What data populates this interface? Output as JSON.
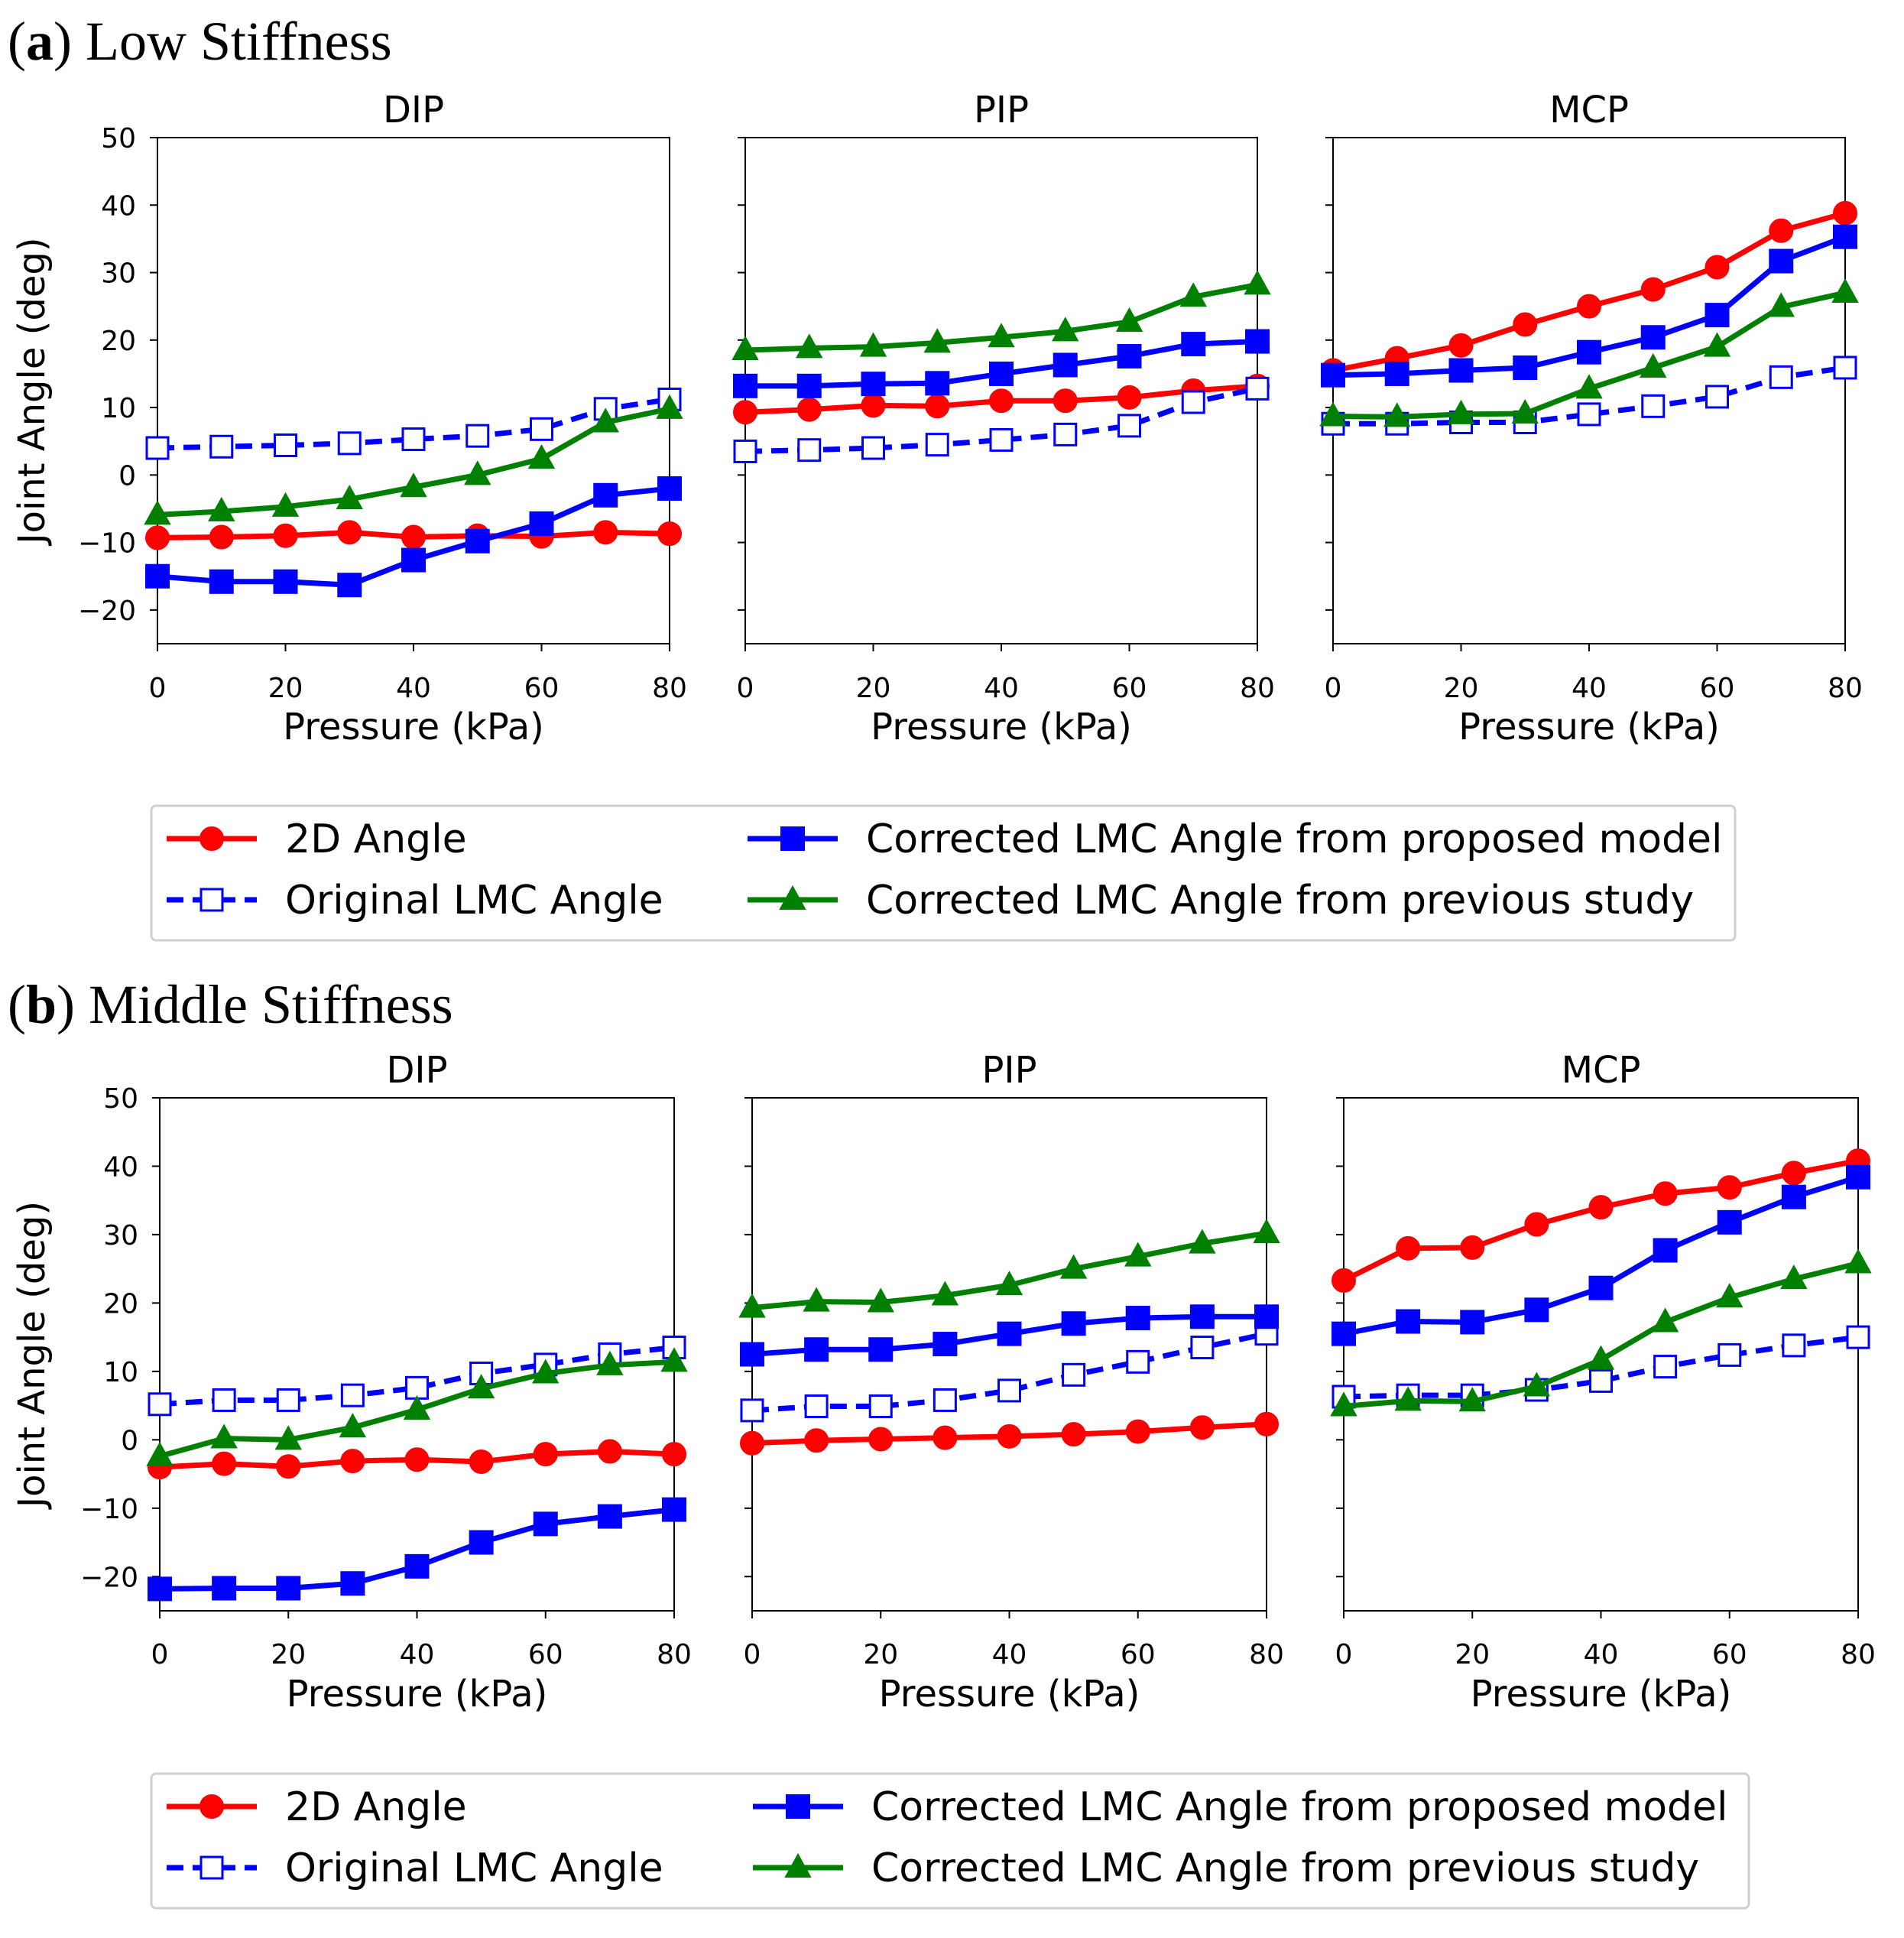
{
  "colors": {
    "2d": "#ff0000",
    "orig": "#0000ff",
    "prop": "#0000ff",
    "prev": "#008000",
    "frame": "#000000",
    "legend_border": "#d0d0d0"
  },
  "legend": {
    "items": [
      {
        "key": "2d",
        "label": "2D Angle"
      },
      {
        "key": "orig",
        "label": "Original LMC Angle"
      },
      {
        "key": "prop",
        "label": "Corrected LMC Angle from proposed model"
      },
      {
        "key": "prev",
        "label": "Corrected LMC Angle from previous study"
      }
    ]
  },
  "panels": [
    {
      "letter": "a",
      "title_rest": "Low Stiffness",
      "subplots": [
        {
          "title": "DIP",
          "xlabel": "Pressure (kPa)"
        },
        {
          "title": "PIP",
          "xlabel": "Pressure (kPa)"
        },
        {
          "title": "MCP",
          "xlabel": "Pressure (kPa)"
        }
      ]
    },
    {
      "letter": "b",
      "title_rest": "Middle Stiffness",
      "subplots": [
        {
          "title": "DIP",
          "xlabel": "Pressure (kPa)"
        },
        {
          "title": "PIP",
          "xlabel": "Pressure (kPa)"
        },
        {
          "title": "MCP",
          "xlabel": "Pressure (kPa)"
        }
      ]
    }
  ],
  "axis": {
    "ylabel": "Joint Angle (deg)",
    "xticks": [
      0,
      20,
      40,
      60,
      80
    ],
    "yticks": [
      50,
      40,
      30,
      20,
      10,
      0,
      -10,
      -20
    ],
    "ytick_labels": [
      "50",
      "40",
      "30",
      "20",
      "10",
      "0",
      "−10",
      "−20"
    ]
  },
  "chart_data": [
    {
      "type": "line",
      "panel": "(a) Low Stiffness",
      "subplot": "DIP",
      "x": [
        0,
        10,
        20,
        30,
        40,
        50,
        60,
        70,
        80
      ],
      "xlabel": "Pressure (kPa)",
      "ylabel": "Joint Angle (deg)",
      "xlim": [
        0,
        80
      ],
      "ylim": [
        -25,
        50
      ],
      "series": [
        {
          "name": "2D Angle",
          "values": [
            -9.3,
            -9.2,
            -9.0,
            -8.5,
            -9.2,
            -9.0,
            -9.1,
            -8.5,
            -8.7
          ]
        },
        {
          "name": "Original LMC Angle",
          "values": [
            4.0,
            4.2,
            4.4,
            4.7,
            5.3,
            5.8,
            6.8,
            9.8,
            11.2
          ]
        },
        {
          "name": "Corrected LMC Angle from proposed model",
          "values": [
            -15.0,
            -15.8,
            -15.8,
            -16.3,
            -12.6,
            -9.8,
            -7.2,
            -3.0,
            -2.0
          ]
        },
        {
          "name": "Corrected LMC Angle from previous study",
          "values": [
            -5.9,
            -5.4,
            -4.7,
            -3.6,
            -1.8,
            0.0,
            2.4,
            7.8,
            9.8
          ]
        }
      ]
    },
    {
      "type": "line",
      "panel": "(a) Low Stiffness",
      "subplot": "PIP",
      "x": [
        0,
        10,
        20,
        30,
        40,
        50,
        60,
        70,
        80
      ],
      "xlabel": "Pressure (kPa)",
      "ylabel": "Joint Angle (deg)",
      "xlim": [
        0,
        80
      ],
      "ylim": [
        -25,
        50
      ],
      "series": [
        {
          "name": "2D Angle",
          "values": [
            9.3,
            9.7,
            10.3,
            10.2,
            11.0,
            11.0,
            11.5,
            12.5,
            13.2
          ]
        },
        {
          "name": "Original LMC Angle",
          "values": [
            3.5,
            3.7,
            4.0,
            4.5,
            5.2,
            6.0,
            7.3,
            10.8,
            12.8
          ]
        },
        {
          "name": "Corrected LMC Angle from proposed model",
          "values": [
            13.2,
            13.2,
            13.5,
            13.6,
            15.0,
            16.3,
            17.6,
            19.4,
            19.8
          ]
        },
        {
          "name": "Corrected LMC Angle from previous study",
          "values": [
            18.5,
            18.8,
            19.0,
            19.6,
            20.4,
            21.3,
            22.7,
            26.4,
            28.2
          ]
        }
      ]
    },
    {
      "type": "line",
      "panel": "(a) Low Stiffness",
      "subplot": "MCP",
      "x": [
        0,
        10,
        20,
        30,
        40,
        50,
        60,
        70,
        80
      ],
      "xlabel": "Pressure (kPa)",
      "ylabel": "Joint Angle (deg)",
      "xlim": [
        0,
        80
      ],
      "ylim": [
        -25,
        50
      ],
      "series": [
        {
          "name": "2D Angle",
          "values": [
            15.5,
            17.3,
            19.2,
            22.3,
            25.0,
            27.5,
            30.8,
            36.2,
            38.8
          ]
        },
        {
          "name": "Original LMC Angle",
          "values": [
            7.6,
            7.6,
            7.8,
            7.8,
            9.0,
            10.2,
            11.6,
            14.5,
            15.9
          ]
        },
        {
          "name": "Corrected LMC Angle from proposed model",
          "values": [
            14.8,
            15.0,
            15.5,
            15.9,
            18.2,
            20.4,
            23.7,
            31.7,
            35.3
          ]
        },
        {
          "name": "Corrected LMC Angle from previous study",
          "values": [
            8.7,
            8.6,
            9.0,
            9.1,
            12.8,
            15.9,
            19.0,
            24.9,
            27.0
          ]
        }
      ]
    },
    {
      "type": "line",
      "panel": "(b) Middle Stiffness",
      "subplot": "DIP",
      "x": [
        0,
        10,
        20,
        30,
        40,
        50,
        60,
        70,
        80
      ],
      "xlabel": "Pressure (kPa)",
      "ylabel": "Joint Angle (deg)",
      "xlim": [
        0,
        80
      ],
      "ylim": [
        -25,
        50
      ],
      "series": [
        {
          "name": "2D Angle",
          "values": [
            -4.0,
            -3.5,
            -3.9,
            -3.1,
            -2.9,
            -3.2,
            -2.1,
            -1.7,
            -2.1
          ]
        },
        {
          "name": "Original LMC Angle",
          "values": [
            5.2,
            5.8,
            5.8,
            6.5,
            7.6,
            9.7,
            11.0,
            12.5,
            13.5
          ]
        },
        {
          "name": "Corrected LMC Angle from proposed model",
          "values": [
            -21.8,
            -21.7,
            -21.7,
            -21.0,
            -18.5,
            -15.0,
            -12.3,
            -11.2,
            -10.2
          ]
        },
        {
          "name": "Corrected LMC Angle from previous study",
          "values": [
            -2.4,
            0.2,
            0.0,
            1.8,
            4.4,
            7.5,
            9.7,
            10.9,
            11.4
          ]
        }
      ]
    },
    {
      "type": "line",
      "panel": "(b) Middle Stiffness",
      "subplot": "PIP",
      "x": [
        0,
        10,
        20,
        30,
        40,
        50,
        60,
        70,
        80
      ],
      "xlabel": "Pressure (kPa)",
      "ylabel": "Joint Angle (deg)",
      "xlim": [
        0,
        80
      ],
      "ylim": [
        -25,
        50
      ],
      "series": [
        {
          "name": "2D Angle",
          "values": [
            -0.5,
            -0.1,
            0.1,
            0.3,
            0.5,
            0.8,
            1.2,
            1.8,
            2.3
          ]
        },
        {
          "name": "Original LMC Angle",
          "values": [
            4.3,
            4.9,
            4.9,
            5.8,
            7.2,
            9.5,
            11.4,
            13.5,
            15.5
          ]
        },
        {
          "name": "Corrected LMC Angle from proposed model",
          "values": [
            12.5,
            13.2,
            13.2,
            14.0,
            15.5,
            17.0,
            17.8,
            18.0,
            18.0
          ]
        },
        {
          "name": "Corrected LMC Angle from previous study",
          "values": [
            19.3,
            20.2,
            20.1,
            21.1,
            22.6,
            25.0,
            26.8,
            28.7,
            30.2
          ]
        }
      ]
    },
    {
      "type": "line",
      "panel": "(b) Middle Stiffness",
      "subplot": "MCP",
      "x": [
        0,
        10,
        20,
        30,
        40,
        50,
        60,
        70,
        80
      ],
      "xlabel": "Pressure (kPa)",
      "ylabel": "Joint Angle (deg)",
      "xlim": [
        0,
        80
      ],
      "ylim": [
        -25,
        50
      ],
      "series": [
        {
          "name": "2D Angle",
          "values": [
            23.3,
            28.0,
            28.1,
            31.5,
            34.0,
            36.0,
            36.9,
            39.0,
            40.8
          ]
        },
        {
          "name": "Original LMC Angle",
          "values": [
            6.3,
            6.5,
            6.5,
            7.3,
            8.6,
            10.7,
            12.4,
            13.8,
            15.0
          ]
        },
        {
          "name": "Corrected LMC Angle from proposed model",
          "values": [
            15.5,
            17.3,
            17.2,
            19.0,
            22.2,
            27.7,
            31.8,
            35.5,
            38.4
          ]
        },
        {
          "name": "Corrected LMC Angle from previous study",
          "values": [
            4.9,
            5.7,
            5.6,
            7.8,
            11.7,
            17.2,
            20.8,
            23.5,
            25.8
          ]
        }
      ]
    }
  ]
}
